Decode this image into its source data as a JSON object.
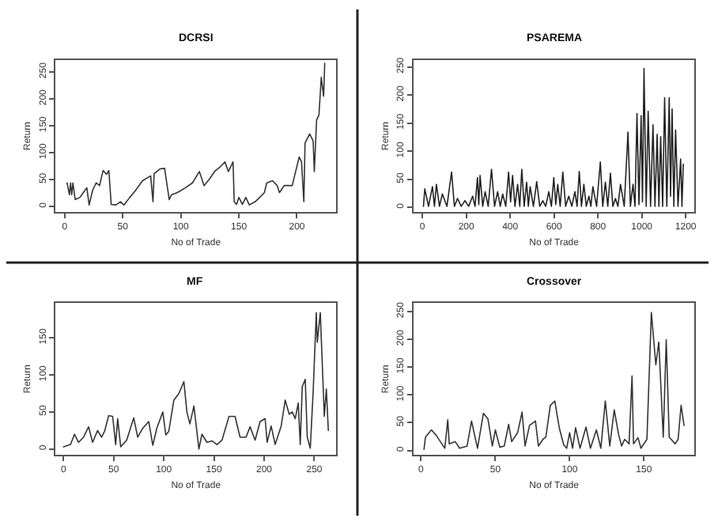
{
  "chart_data": [
    {
      "type": "line",
      "title": "DCRSI",
      "xlabel": "No of Trade",
      "ylabel": "Return",
      "xlim": [
        -8,
        234
      ],
      "ylim": [
        -10,
        272
      ],
      "xticks": [
        0,
        50,
        100,
        150,
        200
      ],
      "yticks": [
        0,
        50,
        100,
        150,
        200,
        250
      ],
      "marker": "none",
      "line_style": "solid",
      "x": [
        2,
        4,
        5,
        6,
        7,
        9,
        13,
        16,
        19,
        21,
        24,
        27,
        30,
        33,
        36,
        38,
        40,
        44,
        48,
        51,
        56,
        61,
        67,
        74,
        76,
        77,
        82,
        86,
        90,
        92,
        97,
        104,
        110,
        116,
        120,
        125,
        129,
        134,
        138,
        141,
        145,
        146,
        148,
        150,
        153,
        156,
        159,
        164,
        168,
        172,
        174,
        179,
        183,
        185,
        189,
        196,
        198,
        202,
        204,
        206,
        207,
        211,
        214,
        215,
        217,
        219,
        221,
        223,
        224
      ],
      "series": [
        {
          "color": "#333333",
          "values": [
            44,
            22,
            44,
            22,
            44,
            13,
            17,
            26,
            35,
            3,
            30,
            44,
            39,
            67,
            60,
            67,
            4,
            3,
            9,
            3,
            17,
            30,
            48,
            57,
            9,
            61,
            70,
            71,
            13,
            22,
            26,
            35,
            44,
            65,
            39,
            52,
            65,
            74,
            83,
            65,
            83,
            9,
            4,
            17,
            4,
            17,
            3,
            9,
            17,
            26,
            44,
            48,
            39,
            26,
            39,
            39,
            57,
            92,
            83,
            9,
            118,
            135,
            122,
            65,
            161,
            170,
            240,
            205,
            266
          ]
        }
      ]
    },
    {
      "type": "line",
      "title": "PSAREMA",
      "xlabel": "No of Trade",
      "ylabel": "Return",
      "xlim": [
        -40,
        1240
      ],
      "ylim": [
        -8,
        262
      ],
      "xticks": [
        0,
        200,
        400,
        600,
        800,
        1000,
        1200
      ],
      "yticks": [
        0,
        50,
        100,
        150,
        200,
        250
      ],
      "marker": "none",
      "line_style": "solid",
      "x": [
        5,
        11,
        28,
        46,
        55,
        64,
        78,
        91,
        112,
        133,
        146,
        160,
        177,
        194,
        211,
        229,
        240,
        251,
        257,
        263,
        275,
        286,
        300,
        315,
        329,
        343,
        355,
        366,
        380,
        393,
        402,
        411,
        422,
        434,
        444,
        453,
        464,
        475,
        483,
        491,
        506,
        521,
        535,
        549,
        562,
        576,
        588,
        599,
        608,
        617,
        628,
        640,
        653,
        667,
        681,
        695,
        705,
        715,
        725,
        736,
        747,
        759,
        768,
        777,
        794,
        811,
        822,
        834,
        845,
        857,
        868,
        880,
        891,
        903,
        920,
        937,
        948,
        960,
        969,
        978,
        987,
        997,
        1003,
        1010,
        1020,
        1029,
        1040,
        1051,
        1060,
        1070,
        1078,
        1086,
        1095,
        1104,
        1114,
        1125,
        1131,
        1138,
        1146,
        1154,
        1165,
        1177,
        1183,
        1189
      ],
      "series": [
        {
          "color": "#222222",
          "values": [
            2,
            33,
            2,
            37,
            2,
            41,
            2,
            24,
            2,
            63,
            2,
            16,
            2,
            12,
            2,
            20,
            2,
            53,
            5,
            57,
            2,
            28,
            2,
            68,
            2,
            28,
            2,
            24,
            2,
            63,
            10,
            57,
            2,
            41,
            2,
            68,
            2,
            45,
            2,
            37,
            2,
            46,
            2,
            12,
            2,
            28,
            2,
            53,
            5,
            41,
            2,
            63,
            2,
            20,
            2,
            28,
            2,
            64,
            2,
            41,
            2,
            20,
            2,
            37,
            2,
            81,
            2,
            45,
            2,
            61,
            2,
            16,
            2,
            41,
            2,
            134,
            2,
            41,
            2,
            167,
            5,
            163,
            10,
            247,
            2,
            171,
            2,
            147,
            2,
            130,
            2,
            126,
            2,
            195,
            2,
            195,
            20,
            175,
            2,
            138,
            2,
            86,
            2,
            77
          ]
        }
      ]
    },
    {
      "type": "line",
      "title": "MF",
      "xlabel": "No of Trade",
      "ylabel": "Return",
      "xlim": [
        -8,
        272
      ],
      "ylim": [
        -8,
        197
      ],
      "xticks": [
        0,
        50,
        100,
        150,
        200,
        250
      ],
      "yticks": [
        0,
        50,
        100,
        150
      ],
      "marker": "none",
      "line_style": "solid",
      "x": [
        0,
        7,
        11,
        15,
        20,
        25,
        29,
        34,
        38,
        41,
        45,
        49,
        52,
        54,
        57,
        63,
        70,
        74,
        79,
        85,
        89,
        93,
        99,
        102,
        105,
        110,
        115,
        120,
        123,
        126,
        130,
        135,
        138,
        143,
        148,
        153,
        158,
        165,
        171,
        176,
        182,
        186,
        191,
        196,
        201,
        203,
        207,
        211,
        217,
        221,
        225,
        228,
        231,
        234,
        236,
        238,
        241,
        243,
        246,
        249,
        252,
        253,
        256,
        260,
        262,
        264
      ],
      "series": [
        {
          "color": "#333333",
          "values": [
            3,
            6,
            20,
            9,
            16,
            30,
            9,
            25,
            16,
            24,
            45,
            44,
            6,
            41,
            3,
            12,
            42,
            16,
            28,
            37,
            5,
            28,
            50,
            19,
            24,
            66,
            75,
            91,
            50,
            34,
            58,
            0,
            20,
            9,
            11,
            6,
            12,
            44,
            44,
            16,
            16,
            30,
            12,
            37,
            41,
            9,
            31,
            6,
            31,
            66,
            47,
            50,
            41,
            62,
            6,
            84,
            94,
            16,
            1,
            81,
            184,
            144,
            184,
            44,
            81,
            25
          ]
        }
      ]
    },
    {
      "type": "line",
      "title": "Crossover",
      "xlabel": "No of Trade",
      "ylabel": "Return",
      "xlim": [
        -5,
        184
      ],
      "ylim": [
        -8,
        265
      ],
      "xticks": [
        0,
        50,
        100,
        150
      ],
      "yticks": [
        0,
        50,
        100,
        150,
        200,
        250
      ],
      "marker": "none",
      "line_style": "solid",
      "x": [
        2,
        3,
        7,
        10,
        14,
        16,
        18,
        19,
        23,
        26,
        31,
        34,
        38,
        42,
        45,
        48,
        50,
        53,
        56,
        59,
        61,
        65,
        68,
        70,
        73,
        77,
        79,
        82,
        84,
        87,
        90,
        93,
        96,
        98,
        100,
        102,
        104,
        107,
        111,
        114,
        118,
        121,
        124,
        127,
        130,
        133,
        135,
        137,
        140,
        142,
        143,
        146,
        148,
        152,
        155,
        158,
        160,
        163,
        165,
        167,
        171,
        173,
        175,
        177
      ],
      "series": [
        {
          "color": "#333333",
          "values": [
            2,
            24,
            37,
            28,
            12,
            4,
            55,
            12,
            16,
            4,
            8,
            53,
            4,
            67,
            57,
            8,
            37,
            6,
            8,
            47,
            16,
            32,
            69,
            8,
            45,
            53,
            8,
            20,
            24,
            81,
            89,
            41,
            10,
            4,
            32,
            4,
            41,
            4,
            42,
            4,
            37,
            4,
            89,
            8,
            73,
            28,
            8,
            20,
            12,
            134,
            12,
            23,
            4,
            20,
            248,
            154,
            195,
            24,
            199,
            24,
            12,
            20,
            81,
            45
          ]
        }
      ]
    }
  ]
}
